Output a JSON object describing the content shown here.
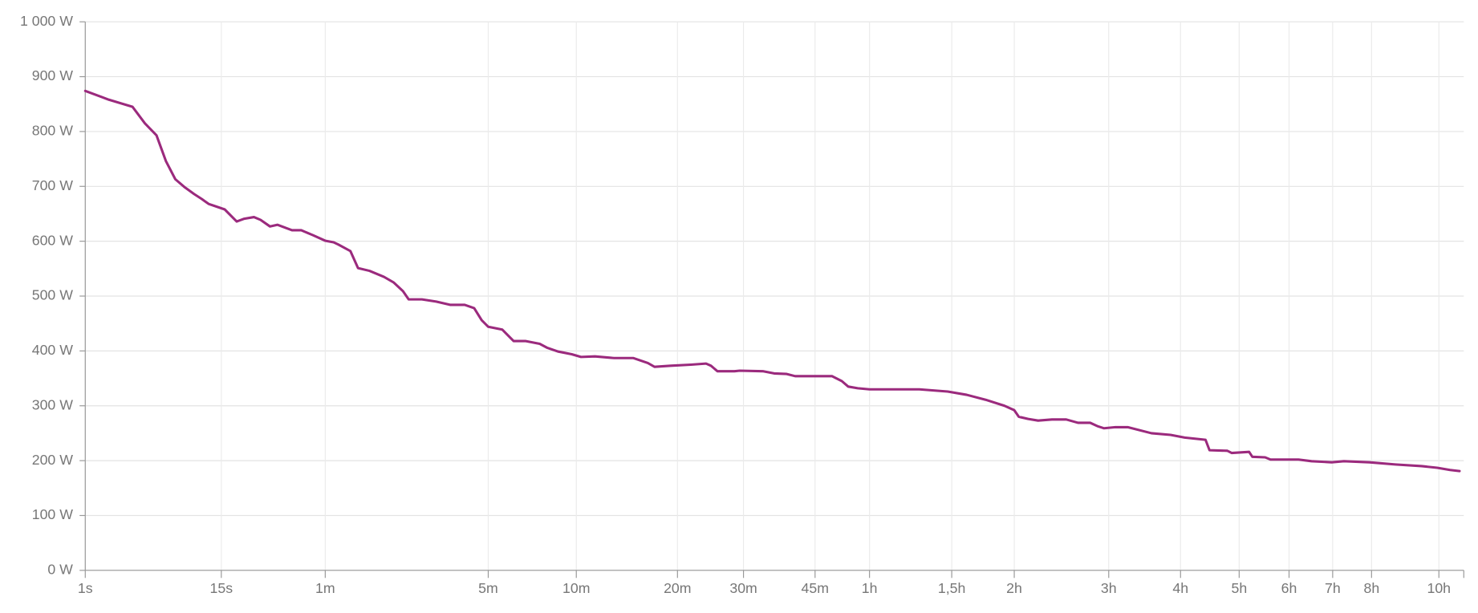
{
  "chart_data": {
    "type": "line",
    "color": "#9b2a7d",
    "grid": true,
    "xscale": "pow",
    "xexponent": 0.2,
    "xlim": [
      1,
      39000
    ],
    "xticks": [
      {
        "value": 1,
        "label": "1s"
      },
      {
        "value": 15,
        "label": "15s"
      },
      {
        "value": 60,
        "label": "1m"
      },
      {
        "value": 300,
        "label": "5m"
      },
      {
        "value": 600,
        "label": "10m"
      },
      {
        "value": 1200,
        "label": "20m"
      },
      {
        "value": 1800,
        "label": "30m"
      },
      {
        "value": 2700,
        "label": "45m"
      },
      {
        "value": 3600,
        "label": "1h"
      },
      {
        "value": 5400,
        "label": "1,5h"
      },
      {
        "value": 7200,
        "label": "2h"
      },
      {
        "value": 10800,
        "label": "3h"
      },
      {
        "value": 14400,
        "label": "4h"
      },
      {
        "value": 18000,
        "label": "5h"
      },
      {
        "value": 21600,
        "label": "6h"
      },
      {
        "value": 25200,
        "label": "7h"
      },
      {
        "value": 28800,
        "label": "8h"
      },
      {
        "value": 36000,
        "label": "10h"
      }
    ],
    "ylim": [
      0,
      1000
    ],
    "yticks": [
      {
        "value": 0,
        "label": "0 W"
      },
      {
        "value": 100,
        "label": "100 W"
      },
      {
        "value": 200,
        "label": "200 W"
      },
      {
        "value": 300,
        "label": "300 W"
      },
      {
        "value": 400,
        "label": "400 W"
      },
      {
        "value": 500,
        "label": "500 W"
      },
      {
        "value": 600,
        "label": "600 W"
      },
      {
        "value": 700,
        "label": "700 W"
      },
      {
        "value": 800,
        "label": "800 W"
      },
      {
        "value": 900,
        "label": "900 W"
      },
      {
        "value": 1000,
        "label": "1 000 W"
      }
    ],
    "x": [
      1,
      1.8,
      3.05,
      3.93,
      4.94,
      5.9,
      7.0,
      8.3,
      9.7,
      11.0,
      12.3,
      15.8,
      18.9,
      21.1,
      24.2,
      26.5,
      30.1,
      33.3,
      40.1,
      45.0,
      51.9,
      59.9,
      66.1,
      69.7,
      79.8,
      86.7,
      98,
      113.9,
      125.5,
      137.9,
      145.8,
      165.7,
      189.4,
      215.8,
      244.9,
      266,
      283.7,
      300,
      337,
      370,
      408,
      455,
      481,
      523,
      580,
      621,
      687,
      786,
      898,
      989,
      1034,
      1150,
      1307,
      1436,
      1480,
      1540,
      1706,
      1760,
      2015,
      2150,
      2308,
      2420,
      2960,
      3117,
      3223,
      3387,
      3600,
      4621,
      5299,
      5793,
      6323,
      6892,
      7200,
      7346,
      7658,
      8000,
      8500,
      9036,
      9500,
      10000,
      10300,
      10595,
      11100,
      11673,
      12840,
      13847,
      14635,
      15856,
      16100,
      17222,
      17500,
      18676,
      18900,
      19810,
      20200,
      22344,
      23400,
      25105,
      26200,
      28597,
      31200,
      34036,
      35800,
      37325,
      38472
    ],
    "values": [
      874,
      858,
      845,
      815,
      793,
      746,
      713,
      698,
      686,
      677,
      668,
      658,
      636,
      641,
      644,
      639,
      627,
      630,
      620,
      620,
      611,
      601,
      598,
      594,
      582,
      551,
      546,
      535,
      525,
      509,
      494,
      494,
      490,
      484,
      484,
      478,
      456,
      444,
      439,
      418,
      418,
      413,
      406,
      399,
      394,
      389,
      390,
      387,
      387,
      378,
      371,
      373,
      375,
      377,
      373,
      363,
      363,
      364,
      363,
      359,
      358,
      354,
      354,
      345,
      335,
      332,
      330,
      330,
      326,
      320,
      311,
      300,
      292,
      280,
      276,
      273,
      275,
      275,
      269,
      269,
      263,
      259,
      261,
      261,
      250,
      247,
      242,
      238,
      219,
      218,
      214,
      216,
      207,
      206,
      202,
      202,
      199,
      197,
      199,
      197,
      193,
      190,
      187,
      183,
      181
    ]
  }
}
